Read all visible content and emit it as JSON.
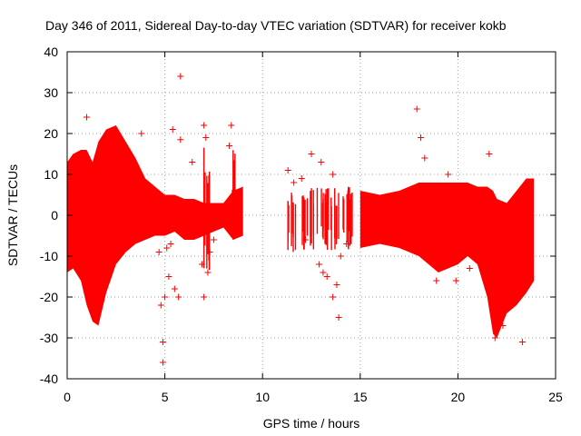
{
  "chart_data": {
    "type": "scatter",
    "title": "Day 346 of 2011, Sidereal Day-to-day VTEC variation (SDTVAR) for receiver kokb",
    "xlabel": "GPS time / hours",
    "ylabel": "SDTVAR / TECUs",
    "xlim": [
      0,
      25
    ],
    "ylim": [
      -40,
      40
    ],
    "xticks": [
      0,
      5,
      10,
      15,
      20,
      25
    ],
    "yticks": [
      -40,
      -30,
      -20,
      -10,
      0,
      10,
      20,
      30,
      40
    ],
    "grid": true,
    "marker": "+",
    "color": "#ff0000",
    "envelope": [
      {
        "x": 0.0,
        "hi": 13,
        "lo": -14
      },
      {
        "x": 0.3,
        "hi": 15,
        "lo": -13
      },
      {
        "x": 0.7,
        "hi": 16,
        "lo": -16
      },
      {
        "x": 1.0,
        "hi": 16,
        "lo": -22
      },
      {
        "x": 1.3,
        "hi": 13,
        "lo": -26
      },
      {
        "x": 1.6,
        "hi": 18,
        "lo": -27
      },
      {
        "x": 2.0,
        "hi": 21,
        "lo": -19
      },
      {
        "x": 2.5,
        "hi": 22,
        "lo": -12
      },
      {
        "x": 3.0,
        "hi": 18,
        "lo": -9
      },
      {
        "x": 3.5,
        "hi": 14,
        "lo": -7
      },
      {
        "x": 4.0,
        "hi": 9,
        "lo": -6
      },
      {
        "x": 4.5,
        "hi": 7,
        "lo": -5
      },
      {
        "x": 5.0,
        "hi": 5,
        "lo": -5
      },
      {
        "x": 5.5,
        "hi": 5,
        "lo": -4
      },
      {
        "x": 6.0,
        "hi": 4,
        "lo": -6
      },
      {
        "x": 6.5,
        "hi": 4,
        "lo": -6
      },
      {
        "x": 7.0,
        "hi": 3,
        "lo": -5
      },
      {
        "x": 7.5,
        "hi": 3,
        "lo": -4
      },
      {
        "x": 8.0,
        "hi": 3,
        "lo": -3
      },
      {
        "x": 8.5,
        "hi": 6,
        "lo": -6
      },
      {
        "x": 9.0,
        "hi": 7,
        "lo": -5
      }
    ],
    "envelope2": [
      {
        "x": 15.0,
        "hi": 6,
        "lo": -8
      },
      {
        "x": 16.0,
        "hi": 5,
        "lo": -7
      },
      {
        "x": 17.0,
        "hi": 6,
        "lo": -8
      },
      {
        "x": 18.0,
        "hi": 8,
        "lo": -10
      },
      {
        "x": 19.0,
        "hi": 8,
        "lo": -14
      },
      {
        "x": 20.0,
        "hi": 8,
        "lo": -12
      },
      {
        "x": 20.5,
        "hi": 8,
        "lo": -10
      },
      {
        "x": 21.0,
        "hi": 7,
        "lo": -12
      },
      {
        "x": 21.5,
        "hi": 7,
        "lo": -20
      },
      {
        "x": 21.8,
        "hi": 6,
        "lo": -29
      },
      {
        "x": 22.0,
        "hi": 4,
        "lo": -30
      },
      {
        "x": 22.5,
        "hi": 3,
        "lo": -24
      },
      {
        "x": 23.0,
        "hi": 6,
        "lo": -22
      },
      {
        "x": 23.5,
        "hi": 9,
        "lo": -19
      },
      {
        "x": 23.9,
        "hi": 9,
        "lo": -16
      }
    ],
    "points": [
      {
        "x": 1.0,
        "y": 24
      },
      {
        "x": 3.8,
        "y": 20
      },
      {
        "x": 5.4,
        "y": 21
      },
      {
        "x": 5.8,
        "y": 34
      },
      {
        "x": 5.8,
        "y": 18.5
      },
      {
        "x": 6.4,
        "y": 13
      },
      {
        "x": 7.0,
        "y": 22
      },
      {
        "x": 7.1,
        "y": 19
      },
      {
        "x": 8.4,
        "y": 22
      },
      {
        "x": 8.3,
        "y": 17
      },
      {
        "x": 4.9,
        "y": -36
      },
      {
        "x": 4.9,
        "y": -31
      },
      {
        "x": 4.8,
        "y": -22
      },
      {
        "x": 5.0,
        "y": -20
      },
      {
        "x": 5.2,
        "y": -15
      },
      {
        "x": 5.5,
        "y": -18
      },
      {
        "x": 5.7,
        "y": -20
      },
      {
        "x": 5.1,
        "y": -8
      },
      {
        "x": 4.7,
        "y": -9
      },
      {
        "x": 5.3,
        "y": -7
      },
      {
        "x": 7.0,
        "y": -20
      },
      {
        "x": 7.2,
        "y": -14
      },
      {
        "x": 6.9,
        "y": -12
      },
      {
        "x": 7.3,
        "y": -9
      },
      {
        "x": 7.5,
        "y": -6
      },
      {
        "x": 11.3,
        "y": 11
      },
      {
        "x": 11.6,
        "y": 8
      },
      {
        "x": 12.0,
        "y": 9
      },
      {
        "x": 12.5,
        "y": 15
      },
      {
        "x": 13.0,
        "y": 13
      },
      {
        "x": 13.6,
        "y": 10
      },
      {
        "x": 12.2,
        "y": -6
      },
      {
        "x": 12.9,
        "y": -12
      },
      {
        "x": 13.1,
        "y": -14
      },
      {
        "x": 13.3,
        "y": -15
      },
      {
        "x": 13.6,
        "y": -20
      },
      {
        "x": 13.9,
        "y": -25
      },
      {
        "x": 13.8,
        "y": -17
      },
      {
        "x": 14.0,
        "y": -10
      },
      {
        "x": 14.3,
        "y": -7
      },
      {
        "x": 17.9,
        "y": 26
      },
      {
        "x": 18.1,
        "y": 19
      },
      {
        "x": 18.3,
        "y": 14
      },
      {
        "x": 19.5,
        "y": 10
      },
      {
        "x": 21.6,
        "y": 15
      },
      {
        "x": 18.9,
        "y": -16
      },
      {
        "x": 19.9,
        "y": -16
      },
      {
        "x": 20.6,
        "y": -13
      },
      {
        "x": 23.3,
        "y": -31
      },
      {
        "x": 22.3,
        "y": -27
      },
      {
        "x": 21.9,
        "y": -30
      }
    ],
    "scatter_islands": [
      {
        "x0": 11.3,
        "x1": 14.8,
        "hi": 7,
        "lo": -9
      },
      {
        "x0": 6.9,
        "x1": 7.3,
        "hi": 18,
        "lo": -16
      },
      {
        "x0": 8.4,
        "x1": 8.7,
        "hi": 16,
        "lo": -6
      }
    ]
  }
}
